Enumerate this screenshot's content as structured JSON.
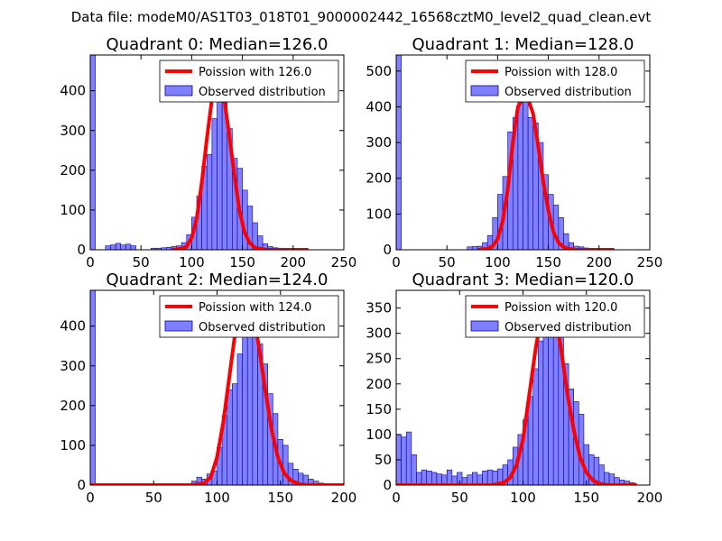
{
  "figure": {
    "suptitle": "Data file: modeM0/AS1T03_018T01_9000002442_16568cztM0_level2_quad_clean.evt"
  },
  "colors": {
    "bar_fill": "#8080ff",
    "bar_edge": "#0000aa",
    "poisson_line": "#ff0000",
    "axes": "#000000"
  },
  "chart_data": [
    {
      "type": "bar",
      "title": "Quadrant 0: Median=126.0",
      "median": 126.0,
      "xlim": [
        0,
        250
      ],
      "ylim": [
        0,
        490
      ],
      "xticks": [
        0,
        50,
        100,
        150,
        200,
        250
      ],
      "yticks": [
        0,
        100,
        200,
        300,
        400
      ],
      "bin_width": 5,
      "legend": [
        "Poission with 126.0",
        "Observed distribution"
      ],
      "legend_loc": "top-right",
      "bars": {
        "x": [
          0,
          15,
          20,
          25,
          30,
          35,
          40,
          60,
          65,
          70,
          75,
          80,
          85,
          90,
          95,
          100,
          105,
          110,
          115,
          120,
          125,
          130,
          135,
          140,
          145,
          150,
          155,
          160,
          165,
          170,
          175,
          180,
          185,
          190,
          195,
          200,
          205,
          210
        ],
        "values": [
          490,
          10,
          12,
          16,
          12,
          14,
          10,
          4,
          4,
          5,
          6,
          8,
          10,
          18,
          38,
          82,
          135,
          210,
          240,
          330,
          385,
          380,
          305,
          230,
          205,
          150,
          110,
          68,
          35,
          15,
          8,
          5,
          4,
          3,
          2,
          2,
          1,
          1
        ]
      },
      "poisson": {
        "x": [
          80,
          90,
          95,
          100,
          105,
          110,
          115,
          120,
          126,
          132,
          137,
          142,
          147,
          152,
          157,
          162,
          168,
          175,
          190,
          215
        ],
        "values": [
          0,
          3,
          8,
          30,
          80,
          170,
          280,
          380,
          420,
          380,
          290,
          190,
          100,
          45,
          18,
          6,
          2,
          0,
          0,
          0
        ]
      }
    },
    {
      "type": "bar",
      "title": "Quadrant 1: Median=128.0",
      "median": 128.0,
      "xlim": [
        0,
        250
      ],
      "ylim": [
        0,
        545
      ],
      "xticks": [
        0,
        50,
        100,
        150,
        200,
        250
      ],
      "yticks": [
        0,
        100,
        200,
        300,
        400,
        500
      ],
      "bin_width": 5,
      "legend": [
        "Poission with 128.0",
        "Observed distribution"
      ],
      "legend_loc": "top-right",
      "bars": {
        "x": [
          0,
          70,
          75,
          80,
          85,
          90,
          95,
          100,
          105,
          110,
          115,
          120,
          125,
          130,
          135,
          140,
          145,
          150,
          155,
          160,
          165,
          170,
          175,
          180,
          185,
          190,
          195,
          200,
          205,
          210
        ],
        "values": [
          545,
          8,
          9,
          10,
          20,
          40,
          90,
          155,
          205,
          330,
          370,
          420,
          515,
          370,
          355,
          300,
          210,
          155,
          125,
          90,
          45,
          20,
          10,
          8,
          5,
          4,
          2,
          2,
          1,
          1
        ]
      },
      "poisson": {
        "x": [
          80,
          90,
          95,
          100,
          105,
          110,
          115,
          120,
          128,
          135,
          140,
          145,
          150,
          155,
          160,
          165,
          170,
          178,
          190,
          215
        ],
        "values": [
          0,
          3,
          10,
          30,
          80,
          170,
          300,
          400,
          440,
          380,
          290,
          190,
          110,
          50,
          20,
          8,
          3,
          0,
          0,
          0
        ]
      }
    },
    {
      "type": "bar",
      "title": "Quadrant 2: Median=124.0",
      "median": 124.0,
      "xlim": [
        0,
        200
      ],
      "ylim": [
        0,
        490
      ],
      "xticks": [
        0,
        50,
        100,
        150,
        200
      ],
      "yticks": [
        0,
        100,
        200,
        300,
        400
      ],
      "bin_width": 4,
      "legend": [
        "Poission with 124.0",
        "Observed distribution"
      ],
      "legend_loc": "top-right",
      "bars": {
        "x": [
          0,
          80,
          84,
          88,
          92,
          96,
          100,
          104,
          108,
          112,
          116,
          120,
          124,
          128,
          132,
          136,
          140,
          144,
          148,
          152,
          156,
          160,
          164,
          168,
          172,
          176,
          180,
          184,
          188
        ],
        "values": [
          490,
          10,
          20,
          15,
          28,
          35,
          95,
          175,
          240,
          255,
          330,
          395,
          445,
          390,
          355,
          305,
          230,
          180,
          115,
          100,
          55,
          40,
          30,
          25,
          15,
          10,
          5,
          3,
          2
        ]
      },
      "poisson": {
        "x": [
          0,
          80,
          90,
          95,
          100,
          105,
          110,
          115,
          120,
          124,
          128,
          133,
          138,
          143,
          148,
          153,
          158,
          165,
          172,
          200
        ],
        "values": [
          0,
          0,
          5,
          20,
          70,
          160,
          280,
          400,
          460,
          470,
          440,
          350,
          240,
          140,
          70,
          30,
          12,
          3,
          0,
          0
        ]
      }
    },
    {
      "type": "bar",
      "title": "Quadrant 3: Median=120.0",
      "median": 120.0,
      "xlim": [
        0,
        200
      ],
      "ylim": [
        0,
        385
      ],
      "xticks": [
        0,
        50,
        100,
        150,
        200
      ],
      "yticks": [
        0,
        50,
        100,
        150,
        200,
        250,
        300,
        350
      ],
      "bin_width": 4,
      "legend": [
        "Poission with 120.0",
        "Observed distribution"
      ],
      "legend_loc": "top-right",
      "bars": {
        "x": [
          0,
          4,
          8,
          12,
          16,
          20,
          24,
          28,
          32,
          36,
          40,
          44,
          48,
          52,
          56,
          60,
          64,
          68,
          72,
          76,
          80,
          84,
          88,
          92,
          96,
          100,
          104,
          108,
          112,
          116,
          120,
          124,
          128,
          132,
          136,
          140,
          144,
          148,
          152,
          156,
          160,
          164,
          168,
          172,
          176,
          180,
          184
        ],
        "values": [
          100,
          95,
          105,
          60,
          25,
          30,
          28,
          25,
          22,
          20,
          30,
          18,
          25,
          15,
          20,
          25,
          20,
          28,
          30,
          28,
          32,
          40,
          50,
          75,
          100,
          130,
          175,
          230,
          285,
          340,
          360,
          345,
          300,
          240,
          190,
          165,
          140,
          80,
          60,
          55,
          40,
          25,
          22,
          15,
          10,
          8,
          5
        ]
      },
      "poisson": {
        "x": [
          0,
          75,
          85,
          90,
          95,
          100,
          105,
          110,
          115,
          120,
          125,
          130,
          135,
          140,
          145,
          150,
          155,
          160,
          168,
          190
        ],
        "values": [
          0,
          0,
          5,
          15,
          40,
          90,
          180,
          270,
          340,
          360,
          340,
          270,
          180,
          110,
          55,
          25,
          10,
          3,
          0,
          0
        ]
      }
    }
  ]
}
